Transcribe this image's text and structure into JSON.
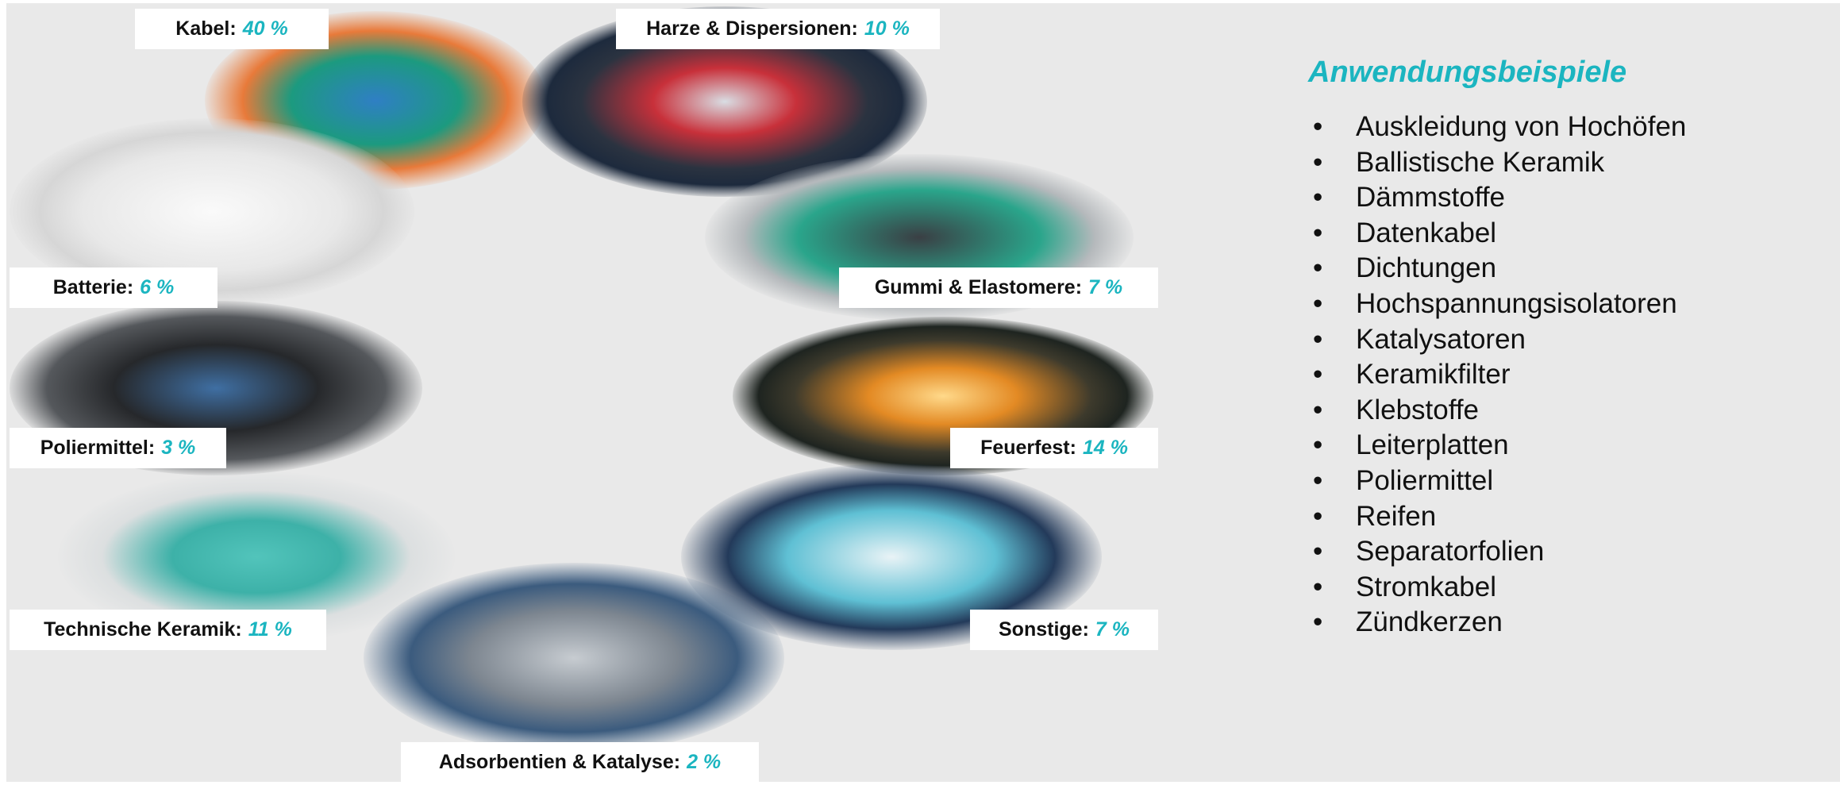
{
  "segments": [
    {
      "name": "Kabel:",
      "share": "40 %"
    },
    {
      "name": "Harze & Dispersionen:",
      "share": "10 %"
    },
    {
      "name": "Batterie:",
      "share": "6 %"
    },
    {
      "name": "Gummi & Elastomere:",
      "share": "7 %"
    },
    {
      "name": "Poliermittel:",
      "share": "3 %"
    },
    {
      "name": "Feuerfest:",
      "share": "14 %"
    },
    {
      "name": "Technische Keramik:",
      "share": "11 %"
    },
    {
      "name": "Sonstige:",
      "share": "7 %"
    },
    {
      "name": "Adsorbentien & Katalyse:",
      "share": "2 %"
    }
  ],
  "examples": {
    "title": "Anwendungsbeispiele",
    "items": [
      "Auskleidung von Hochöfen",
      "Ballistische Keramik",
      "Dämmstoffe",
      "Datenkabel",
      "Dichtungen",
      "Hochspannungsisolatoren",
      "Katalysatoren",
      "Keramikfilter",
      "Klebstoffe",
      "Leiterplatten",
      "Poliermittel",
      "Reifen",
      "Separatorfolien",
      "Stromkabel",
      "Zündkerzen"
    ]
  }
}
